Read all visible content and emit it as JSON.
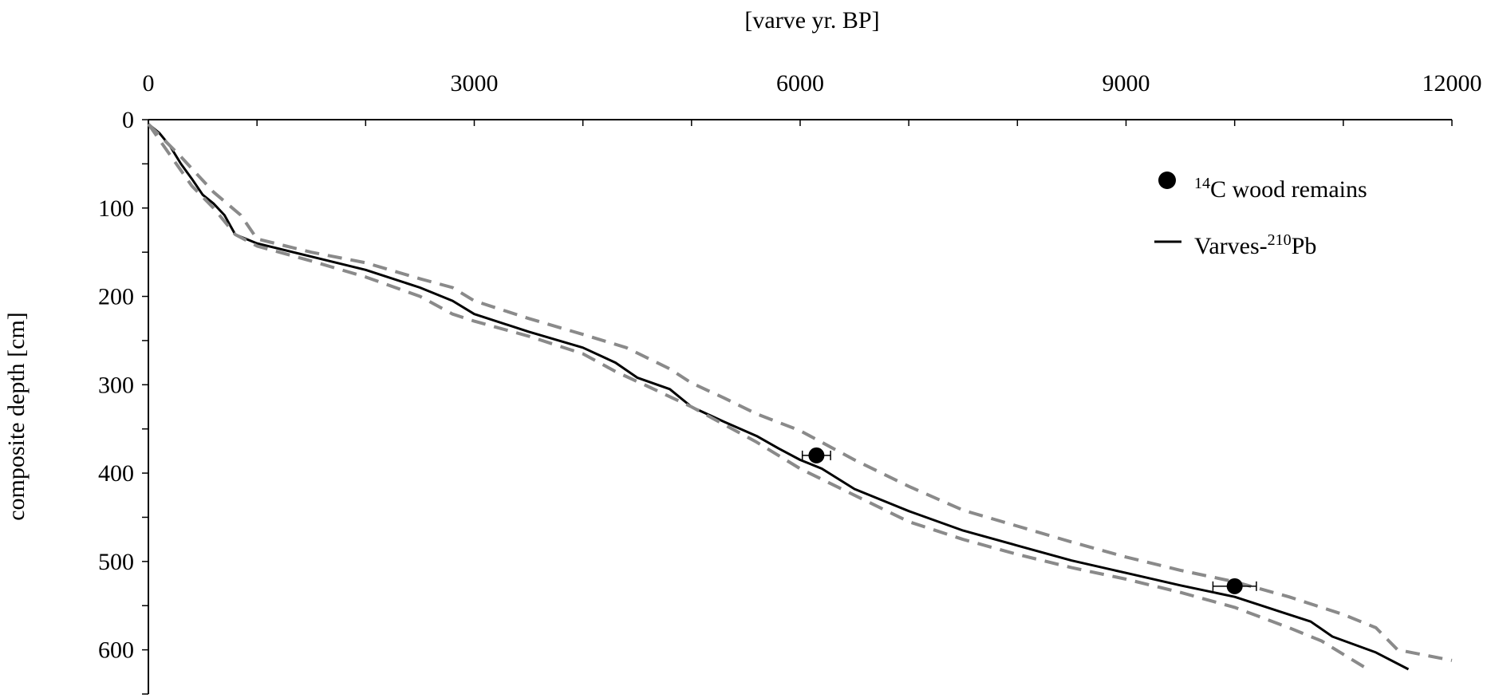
{
  "chart_data": {
    "type": "line",
    "xlabel": "[varve yr. BP]",
    "ylabel": "composite depth [cm]",
    "xlim": [
      0,
      12000
    ],
    "ylim": [
      0,
      650
    ],
    "x_axis_position": "top",
    "y_axis_inverted": true,
    "x_ticks": [
      0,
      3000,
      6000,
      9000,
      12000
    ],
    "y_ticks": [
      0,
      100,
      200,
      300,
      400,
      500,
      600
    ],
    "x_minor_step": 1000,
    "y_minor_step": 50,
    "grid": false,
    "legend_position": "top-right",
    "colors": {
      "main": "#000000",
      "bounds": "#8a8a8a",
      "points": "#000000"
    },
    "legend": [
      {
        "marker": "circle",
        "superscript": "14",
        "text": "C wood remains"
      },
      {
        "marker": "line",
        "text": "Varves-",
        "superscript": "210",
        "text_after": "Pb"
      }
    ],
    "series": [
      {
        "name": "Varves-210Pb",
        "style": "solid",
        "points": [
          [
            0,
            5
          ],
          [
            100,
            15
          ],
          [
            200,
            30
          ],
          [
            300,
            50
          ],
          [
            400,
            67
          ],
          [
            500,
            85
          ],
          [
            600,
            95
          ],
          [
            700,
            108
          ],
          [
            800,
            130
          ],
          [
            1000,
            140
          ],
          [
            1500,
            155
          ],
          [
            2000,
            170
          ],
          [
            2500,
            190
          ],
          [
            2800,
            205
          ],
          [
            3000,
            220
          ],
          [
            3500,
            240
          ],
          [
            4000,
            258
          ],
          [
            4300,
            275
          ],
          [
            4500,
            292
          ],
          [
            4800,
            305
          ],
          [
            5000,
            325
          ],
          [
            5300,
            342
          ],
          [
            5600,
            358
          ],
          [
            5800,
            372
          ],
          [
            6000,
            385
          ],
          [
            6200,
            395
          ],
          [
            6500,
            418
          ],
          [
            7000,
            443
          ],
          [
            7500,
            465
          ],
          [
            8000,
            482
          ],
          [
            8500,
            499
          ],
          [
            9000,
            513
          ],
          [
            9500,
            527
          ],
          [
            10000,
            540
          ],
          [
            10400,
            556
          ],
          [
            10700,
            568
          ],
          [
            10900,
            585
          ],
          [
            11300,
            603
          ],
          [
            11600,
            622
          ]
        ]
      },
      {
        "name": "",
        "style": "dashed",
        "role": "upper-bound",
        "points": [
          [
            0,
            5
          ],
          [
            300,
            42
          ],
          [
            600,
            82
          ],
          [
            850,
            108
          ],
          [
            1000,
            135
          ],
          [
            1500,
            150
          ],
          [
            2000,
            162
          ],
          [
            2500,
            180
          ],
          [
            2800,
            190
          ],
          [
            3000,
            205
          ],
          [
            3500,
            225
          ],
          [
            4000,
            243
          ],
          [
            4400,
            258
          ],
          [
            4800,
            282
          ],
          [
            5000,
            298
          ],
          [
            5300,
            315
          ],
          [
            5600,
            333
          ],
          [
            6000,
            352
          ],
          [
            6500,
            385
          ],
          [
            7000,
            415
          ],
          [
            7500,
            442
          ],
          [
            8000,
            460
          ],
          [
            8500,
            478
          ],
          [
            9000,
            495
          ],
          [
            9500,
            510
          ],
          [
            10000,
            523
          ],
          [
            10500,
            540
          ],
          [
            11000,
            560
          ],
          [
            11300,
            575
          ],
          [
            11500,
            600
          ],
          [
            12000,
            612
          ]
        ]
      },
      {
        "name": "",
        "style": "dashed",
        "role": "lower-bound",
        "points": [
          [
            0,
            5
          ],
          [
            200,
            40
          ],
          [
            400,
            75
          ],
          [
            600,
            100
          ],
          [
            800,
            130
          ],
          [
            1000,
            143
          ],
          [
            1500,
            160
          ],
          [
            2000,
            178
          ],
          [
            2500,
            200
          ],
          [
            2800,
            220
          ],
          [
            3000,
            228
          ],
          [
            3500,
            245
          ],
          [
            4000,
            265
          ],
          [
            4300,
            285
          ],
          [
            4600,
            302
          ],
          [
            5000,
            325
          ],
          [
            5300,
            345
          ],
          [
            5600,
            365
          ],
          [
            6000,
            395
          ],
          [
            6500,
            425
          ],
          [
            7000,
            455
          ],
          [
            7500,
            475
          ],
          [
            8000,
            492
          ],
          [
            8500,
            507
          ],
          [
            9000,
            520
          ],
          [
            9500,
            535
          ],
          [
            10000,
            552
          ],
          [
            10500,
            575
          ],
          [
            10800,
            590
          ],
          [
            11000,
            605
          ],
          [
            11200,
            620
          ]
        ]
      }
    ],
    "points": [
      {
        "x": 6150,
        "y": 380,
        "xerr": 130
      },
      {
        "x": 10000,
        "y": 528,
        "xerr": 200
      }
    ]
  }
}
